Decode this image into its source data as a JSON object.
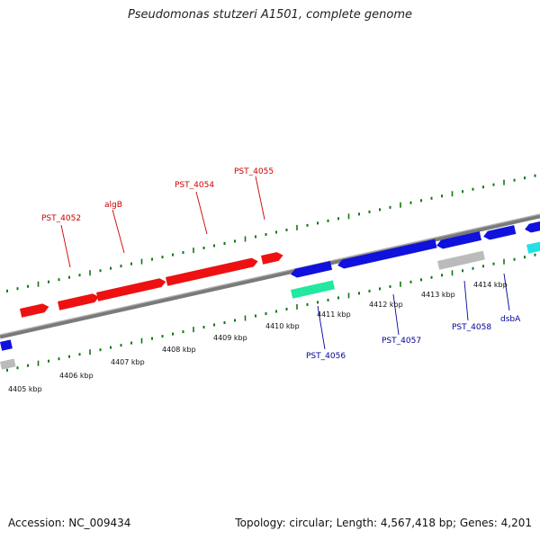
{
  "title": "Pseudomonas stutzeri A1501, complete genome",
  "footer": {
    "accession": "Accession: NC_009434",
    "summary": "Topology: circular; Length: 4,567,418 bp; Genes: 4,201"
  },
  "colors": {
    "forward_gene": "#ee1111",
    "reverse_gene": "#1111dd",
    "rna_gene": "#22e8a0",
    "other_feature": "#bbbbbb",
    "cyan_feature": "#22e0e8",
    "backbone": "#7a7a7a",
    "tick": "#117711",
    "forward_label": "#cc0000",
    "reverse_label": "#000099"
  },
  "kbp_labels": [
    "4405 kbp",
    "4406 kbp",
    "4407 kbp",
    "4408 kbp",
    "4409 kbp",
    "4410 kbp",
    "4411 kbp",
    "4412 kbp",
    "4413 kbp",
    "4414 kbp"
  ],
  "forward_gene_labels": [
    "PST_4052",
    "algB",
    "PST_4054",
    "PST_4055"
  ],
  "reverse_gene_labels": [
    "PST_4056",
    "PST_4057",
    "PST_4058",
    "dsbA"
  ]
}
